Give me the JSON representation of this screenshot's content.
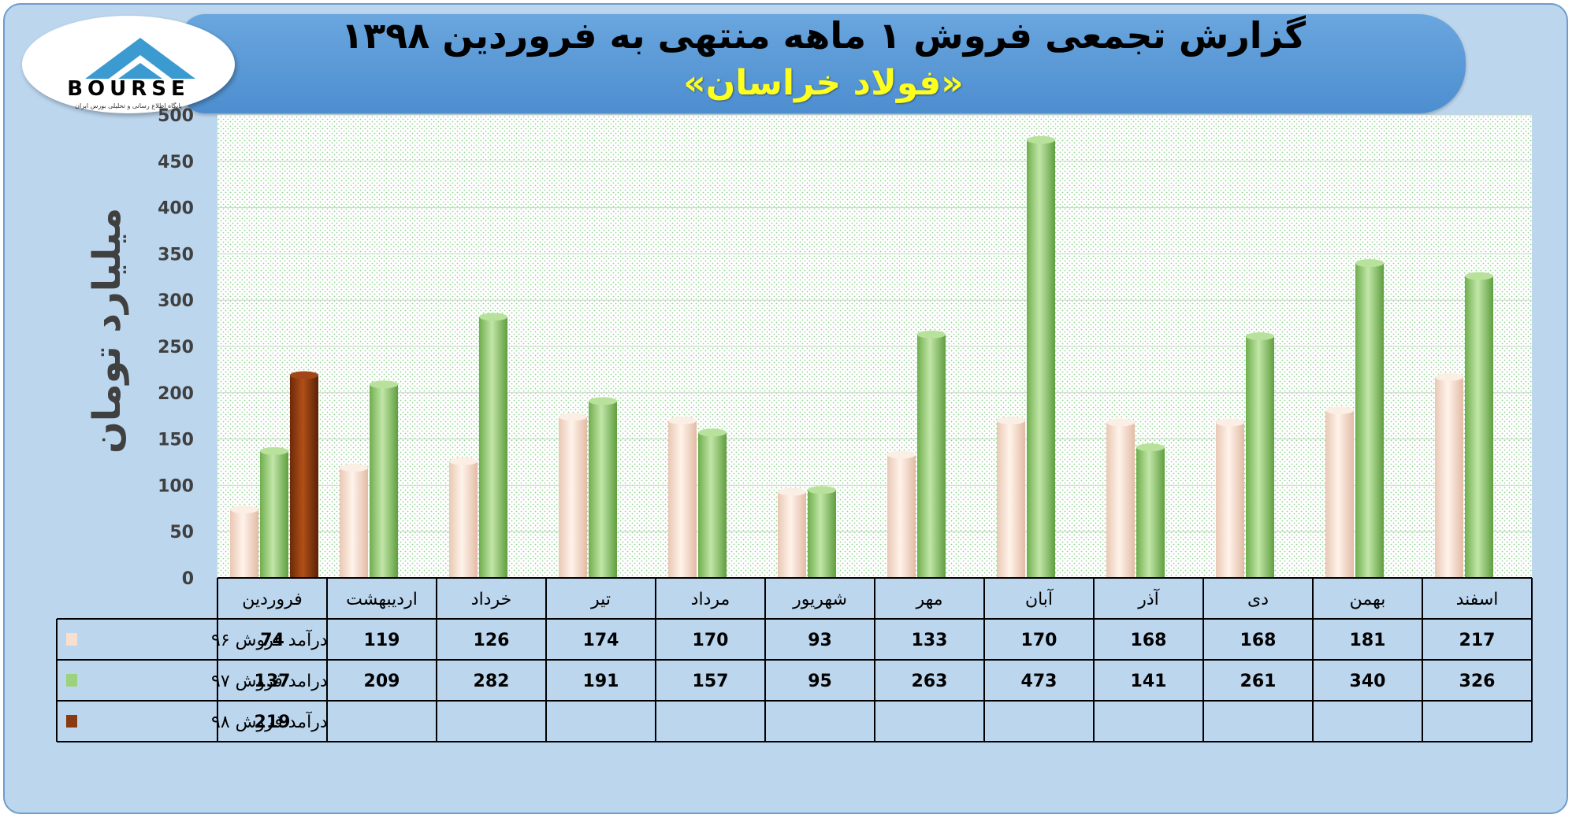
{
  "header": {
    "title": "گزارش تجمعی فروش ۱ ماهه منتهی به فروردین ۱۳۹۸",
    "subtitle": "«فولاد خراسان»"
  },
  "logo": {
    "text": "BOURSE",
    "tagline": "پایگاه اطلاع رسانی و تحلیلی بورس ایران"
  },
  "chart_data": {
    "type": "bar",
    "ylabel": "میلیارد تومان",
    "ylim": [
      0,
      500
    ],
    "yticks": [
      0,
      50,
      100,
      150,
      200,
      250,
      300,
      350,
      400,
      450,
      500
    ],
    "grid": true,
    "legend": "table-bottom",
    "categories": [
      "فروردین",
      "اردیبهشت",
      "خرداد",
      "تیر",
      "مرداد",
      "شهریور",
      "مهر",
      "آبان",
      "آذر",
      "دی",
      "بهمن",
      "اسفند"
    ],
    "series": [
      {
        "name": "درآمد فروش ۹۶",
        "color": "#f8dfcf",
        "values": [
          74,
          119,
          126,
          174,
          170,
          93,
          133,
          170,
          168,
          168,
          181,
          217
        ]
      },
      {
        "name": "درامد فروش ۹۷",
        "color": "#9cd27c",
        "values": [
          137,
          209,
          282,
          191,
          157,
          95,
          263,
          473,
          141,
          261,
          340,
          326
        ]
      },
      {
        "name": "درآمد فروش ۹۸",
        "color": "#8a3a10",
        "values": [
          219,
          null,
          null,
          null,
          null,
          null,
          null,
          null,
          null,
          null,
          null,
          null
        ]
      }
    ]
  }
}
